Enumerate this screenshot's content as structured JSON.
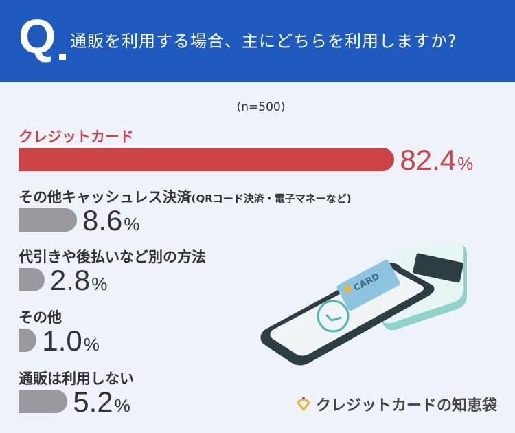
{
  "header": {
    "q_mark": "Q",
    "title": "通販を利用する場合、主にどちらを利用しますか?"
  },
  "chart_data": {
    "type": "bar",
    "orientation": "horizontal",
    "title": "通販を利用する場合、主にどちらを利用しますか?",
    "subtitle": "(n=500)",
    "unit": "%",
    "categories": [
      "クレジットカード",
      "その他キャッシュレス決済",
      "代引きや後払いなど別の方法",
      "その他",
      "通販は利用しない"
    ],
    "category_notes": [
      "",
      "(QRコード決済・電子マネーなど)",
      "",
      "",
      ""
    ],
    "values": [
      82.4,
      8.6,
      2.8,
      1.0,
      5.2
    ],
    "value_labels": [
      "82.4",
      "8.6",
      "2.8",
      "1.0",
      "5.2"
    ],
    "colors": [
      "#cc4444",
      "#9a9a9e",
      "#9a9a9e",
      "#9a9a9e",
      "#9a9a9e"
    ],
    "highlight_color": "#cc4444",
    "grid": false
  },
  "illustration": {
    "card_text": "CARD"
  },
  "brand": {
    "name": "クレジットカードの知恵袋",
    "icon": "diamond-logo-icon",
    "color": "#f0b429"
  },
  "colors": {
    "header": "#1f5bbf",
    "background": "#eef3fb"
  }
}
